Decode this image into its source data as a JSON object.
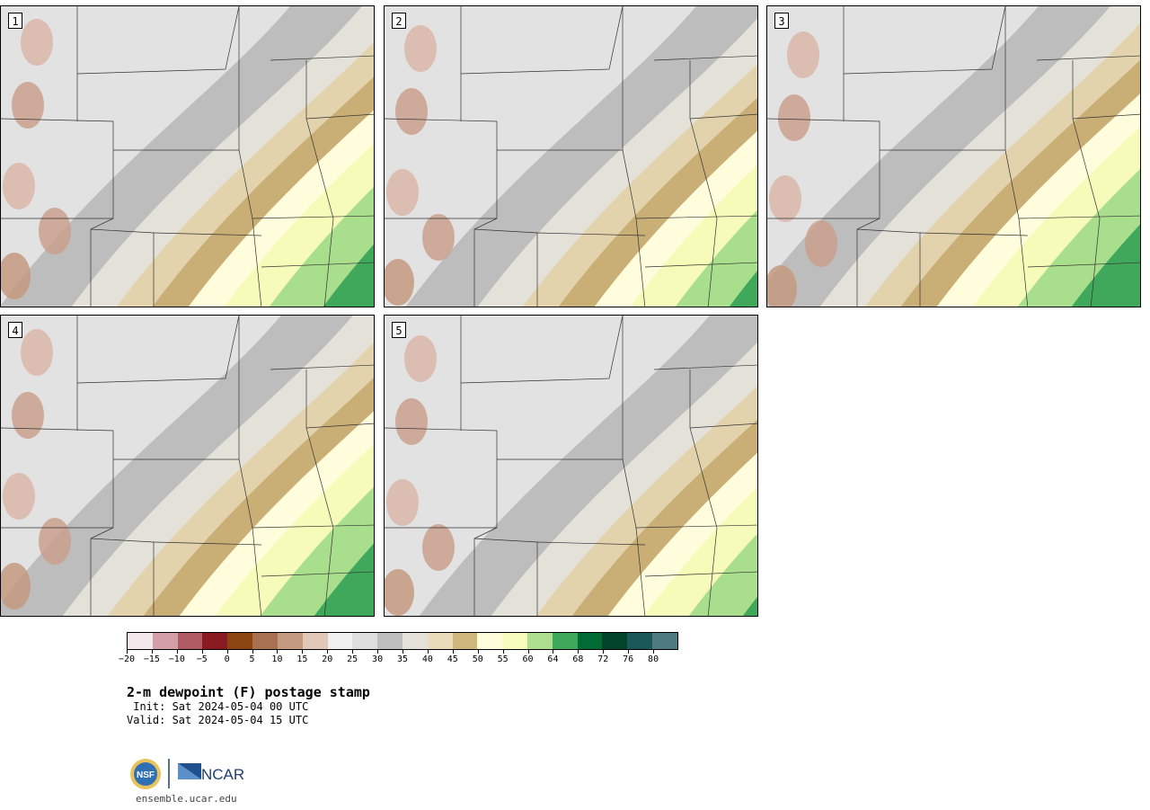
{
  "panels": [
    {
      "label": "1"
    },
    {
      "label": "2"
    },
    {
      "label": "3"
    },
    {
      "label": "4"
    },
    {
      "label": "5"
    }
  ],
  "colorbar": {
    "colors": [
      "#f5e8ec",
      "#d4a0a8",
      "#b05a63",
      "#8a1a22",
      "#8b4513",
      "#a87250",
      "#c49a80",
      "#e2c8b8",
      "#f0f0f0",
      "#dedede",
      "#bdbdbd",
      "#e4e2d8",
      "#e8dcba",
      "#d0b77e",
      "#fffddc",
      "#f8fcbc",
      "#addf8e",
      "#3fa85a",
      "#006b35",
      "#00442c",
      "#1b5858",
      "#4f7a80"
    ],
    "ticks": [
      "−20",
      "−15",
      "−10",
      "−5",
      "0",
      "5",
      "10",
      "15",
      "20",
      "25",
      "30",
      "35",
      "40",
      "45",
      "50",
      "55",
      "60",
      "64",
      "68",
      "72",
      "76",
      "80"
    ]
  },
  "title": "2-m dewpoint (F) postage stamp",
  "init": " Init: Sat 2024-05-04 00 UTC",
  "valid": "Valid: Sat 2024-05-04 15 UTC",
  "logo": {
    "nsf": "NSF",
    "ncar": "NCAR"
  },
  "url": "ensemble.ucar.edu"
}
